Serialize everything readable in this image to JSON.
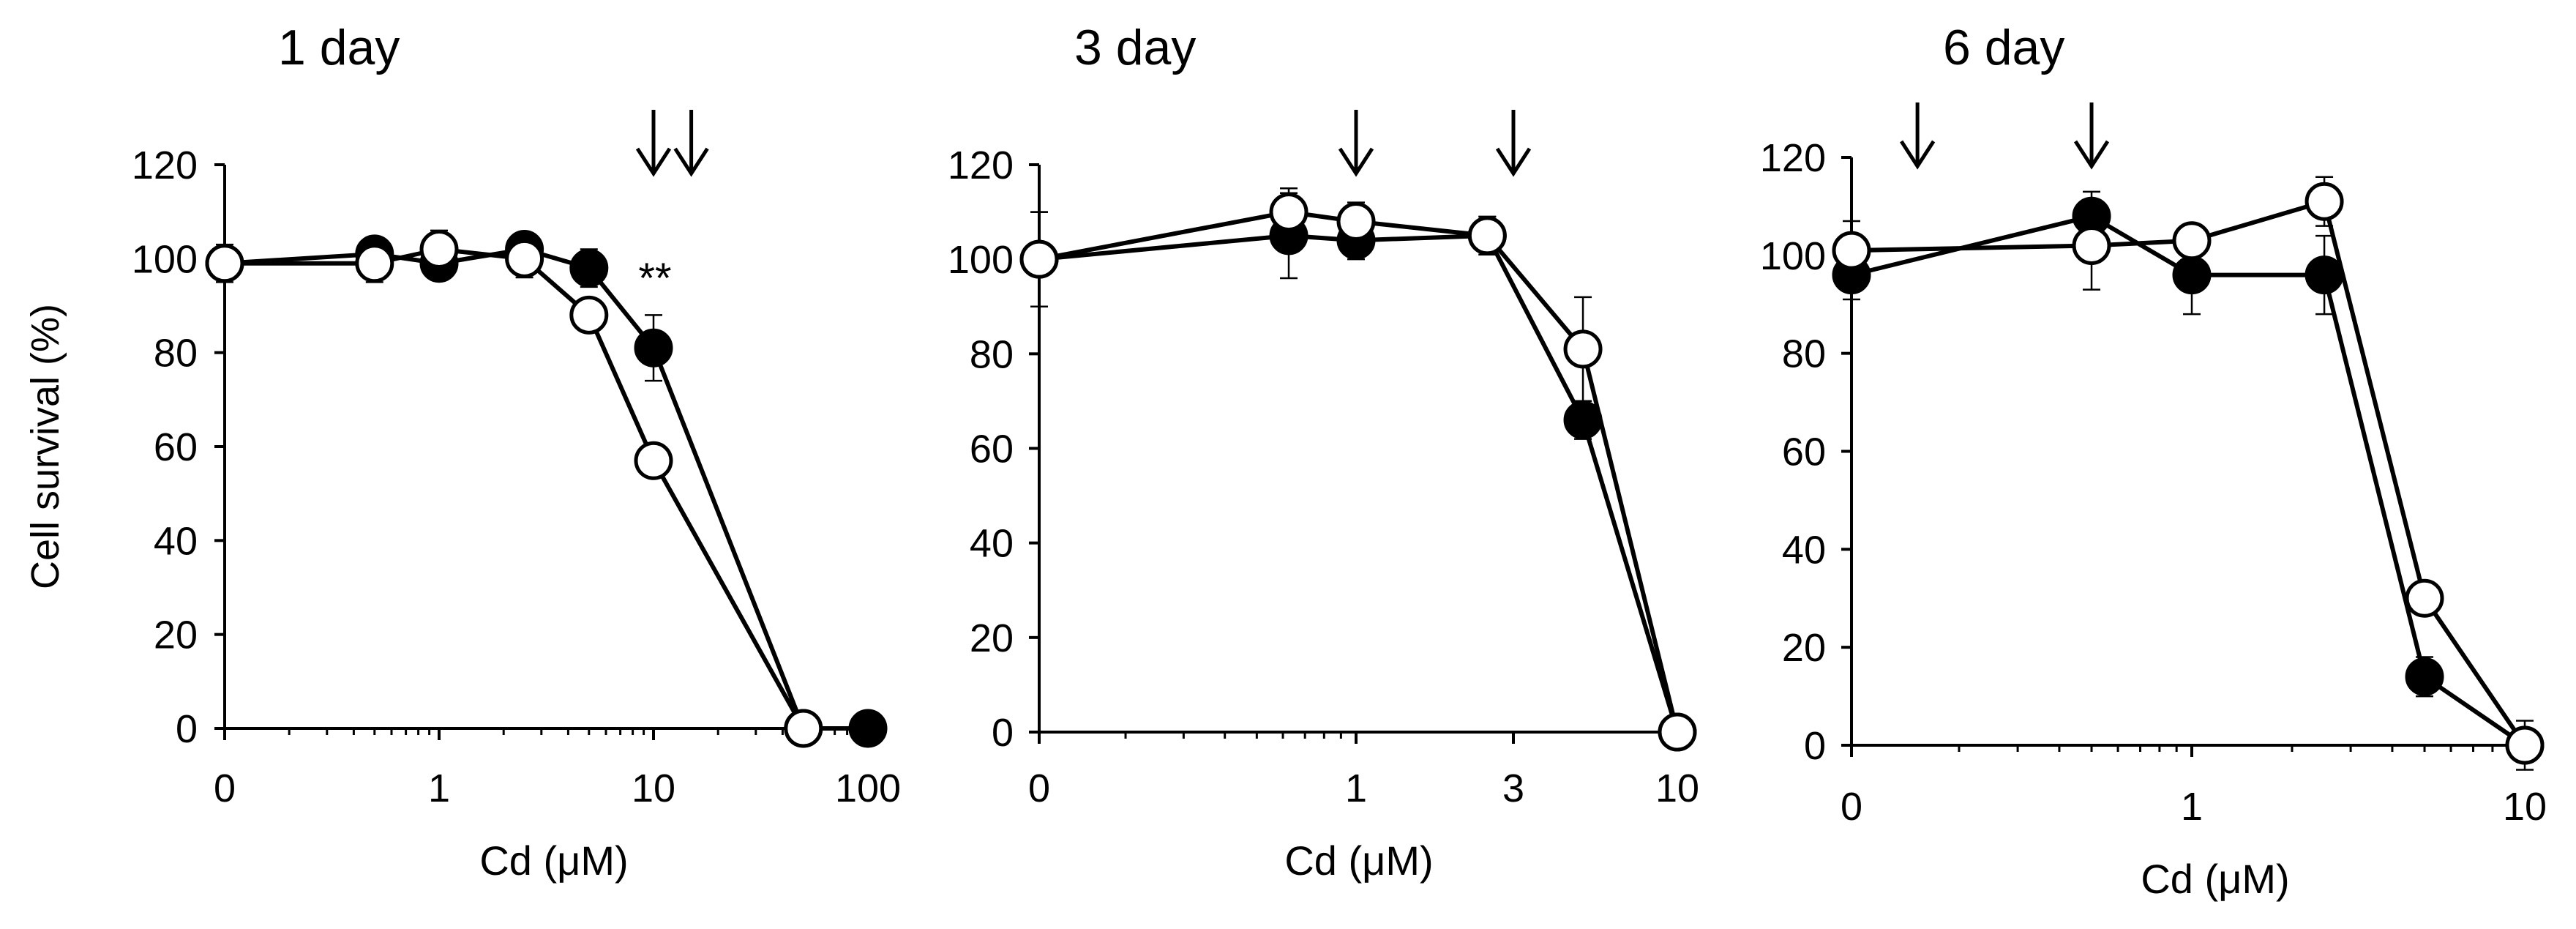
{
  "colors": {
    "ink": "#000000",
    "open_marker": "#ffffff",
    "background": "#ffffff"
  },
  "ylabel": "Cell survival (%)",
  "chart_data": [
    {
      "type": "line",
      "title": "1 day",
      "xlabel": "Cd (μM)",
      "x_scale": "log (first tick = 0)",
      "xtick_labels": [
        "0",
        "1",
        "10",
        "100"
      ],
      "ytick_labels": [
        "0",
        "20",
        "40",
        "60",
        "80",
        "100",
        "120"
      ],
      "ylim": [
        0,
        120
      ],
      "arrows_at": [
        10,
        15
      ],
      "annotation": {
        "text": "**",
        "x": 10,
        "y": 93
      },
      "series": [
        {
          "name": "open circles",
          "marker": "open",
          "x": [
            0,
            0.5,
            1,
            2.5,
            5,
            10,
            50
          ],
          "y": [
            99,
            99,
            102,
            100,
            88,
            57,
            0
          ],
          "err": [
            3,
            4,
            4,
            4,
            2,
            2,
            0
          ]
        },
        {
          "name": "filled circles",
          "marker": "filled",
          "x": [
            0,
            0.5,
            1,
            2.5,
            5,
            10,
            50,
            100
          ],
          "y": [
            99,
            101,
            99,
            102,
            98,
            81,
            0,
            0
          ],
          "err": [
            4,
            3,
            3,
            3,
            4,
            7,
            0,
            0
          ]
        }
      ]
    },
    {
      "type": "line",
      "title": "3 day",
      "xlabel": "Cd (μM)",
      "x_scale": "log (first tick = 0)",
      "xtick_labels": [
        "0",
        "1",
        "3",
        "10"
      ],
      "ytick_labels": [
        "0",
        "20",
        "40",
        "60",
        "80",
        "100",
        "120"
      ],
      "ylim": [
        0,
        120
      ],
      "arrows_at": [
        1,
        3
      ],
      "series": [
        {
          "name": "open circles",
          "marker": "open",
          "x": [
            0,
            0.625,
            1,
            2.5,
            5,
            10
          ],
          "y": [
            100,
            110,
            108,
            105,
            81,
            0
          ],
          "err": [
            10,
            5,
            4,
            4,
            11,
            0
          ]
        },
        {
          "name": "filled circles",
          "marker": "filled",
          "x": [
            0,
            0.625,
            1,
            2.5,
            5,
            10
          ],
          "y": [
            100,
            105,
            104,
            105,
            66,
            0
          ],
          "err": [
            10,
            9,
            4,
            4,
            4,
            0
          ]
        }
      ]
    },
    {
      "type": "line",
      "title": "6 day",
      "xlabel": "Cd (μM)",
      "x_scale": "log (first tick = 0)",
      "xtick_labels": [
        "0",
        "1",
        "10"
      ],
      "ytick_labels": [
        "0",
        "20",
        "40",
        "60",
        "80",
        "100",
        "120"
      ],
      "ylim": [
        0,
        120
      ],
      "arrows_at": [
        0.15,
        0.5
      ],
      "series": [
        {
          "name": "open circles",
          "marker": "open",
          "x": [
            0,
            0.5,
            1,
            2.5,
            5,
            10
          ],
          "y": [
            101,
            102,
            103,
            111,
            30,
            0
          ],
          "err": [
            6,
            9,
            3,
            5,
            2,
            5
          ]
        },
        {
          "name": "filled circles",
          "marker": "filled",
          "x": [
            0,
            0.5,
            1,
            2.5,
            5,
            10
          ],
          "y": [
            96,
            108,
            96,
            96,
            14,
            0
          ],
          "err": [
            5,
            5,
            8,
            8,
            4,
            3
          ]
        }
      ]
    }
  ]
}
